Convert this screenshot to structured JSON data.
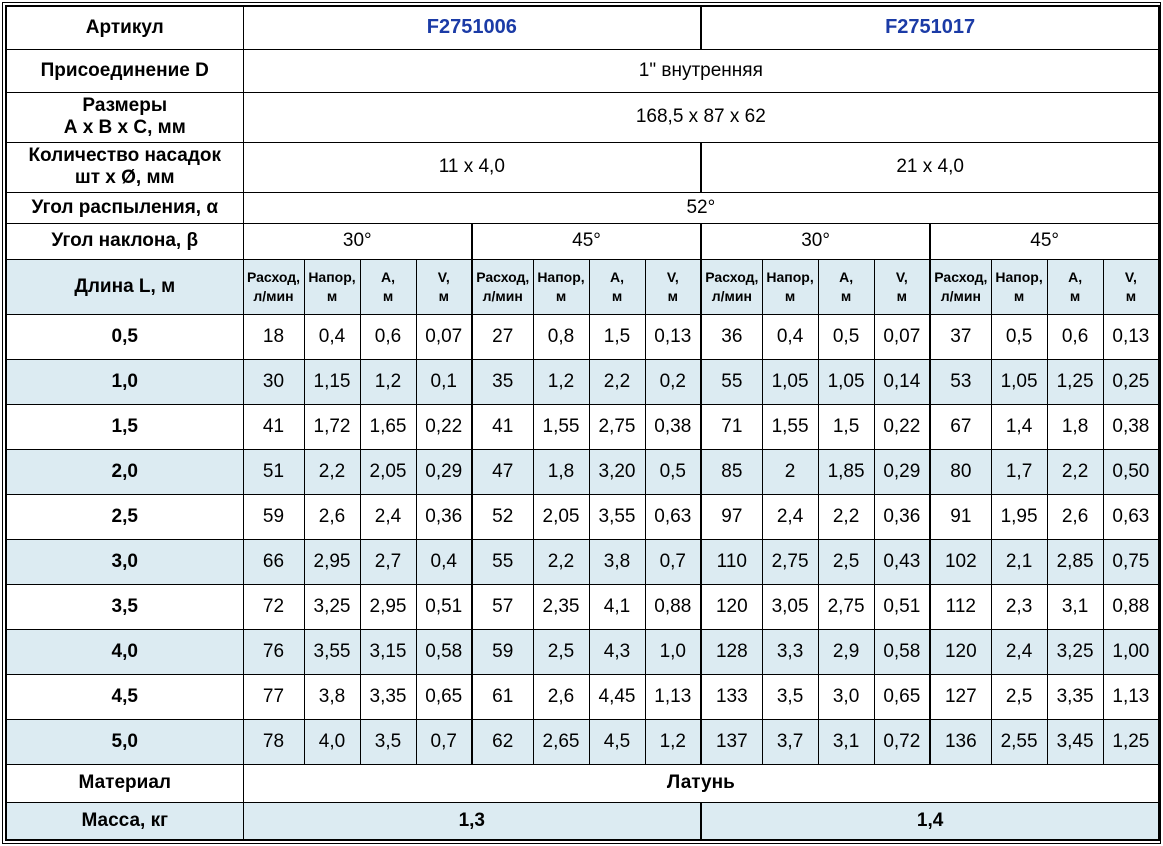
{
  "colors": {
    "article_text": "#1b3ba6",
    "alt_row_bg": "#dcebf2",
    "grid": "#000000"
  },
  "table": {
    "article": {
      "label": "Артикул",
      "values": [
        "F2751006",
        "F2751017"
      ]
    },
    "connection": {
      "label": "Присоединение D",
      "value": "1\" внутренняя"
    },
    "dimensions": {
      "label_line1": "Размеры",
      "label_line2": "А х В х С, мм",
      "value": "168,5 x 87 x 62"
    },
    "nozzles": {
      "label_line1": "Количество насадок",
      "label_line2": "шт х Ø, мм",
      "values": [
        "11 х 4,0",
        "21 х 4,0"
      ]
    },
    "spray_angle": {
      "label": "Угол распыления, α",
      "value": "52°"
    },
    "tilt_angle": {
      "label": "Угол наклона, β",
      "values": [
        "30°",
        "45°",
        "30°",
        "45°"
      ]
    },
    "length": {
      "label": "Длина L, м"
    },
    "measure_headers": [
      {
        "line1": "Расход,",
        "line2": "л/мин"
      },
      {
        "line1": "Напор,",
        "line2": "м"
      },
      {
        "line1": "А,",
        "line2": "м"
      },
      {
        "line1": "V,",
        "line2": "м"
      }
    ],
    "header_groups_repeat": 4,
    "data_rows": [
      {
        "l": "0,5",
        "v": [
          "18",
          "0,4",
          "0,6",
          "0,07",
          "27",
          "0,8",
          "1,5",
          "0,13",
          "36",
          "0,4",
          "0,5",
          "0,07",
          "37",
          "0,5",
          "0,6",
          "0,13"
        ]
      },
      {
        "l": "1,0",
        "v": [
          "30",
          "1,15",
          "1,2",
          "0,1",
          "35",
          "1,2",
          "2,2",
          "0,2",
          "55",
          "1,05",
          "1,05",
          "0,14",
          "53",
          "1,05",
          "1,25",
          "0,25"
        ]
      },
      {
        "l": "1,5",
        "v": [
          "41",
          "1,72",
          "1,65",
          "0,22",
          "41",
          "1,55",
          "2,75",
          "0,38",
          "71",
          "1,55",
          "1,5",
          "0,22",
          "67",
          "1,4",
          "1,8",
          "0,38"
        ]
      },
      {
        "l": "2,0",
        "v": [
          "51",
          "2,2",
          "2,05",
          "0,29",
          "47",
          "1,8",
          "3,20",
          "0,5",
          "85",
          "2",
          "1,85",
          "0,29",
          "80",
          "1,7",
          "2,2",
          "0,50"
        ]
      },
      {
        "l": "2,5",
        "v": [
          "59",
          "2,6",
          "2,4",
          "0,36",
          "52",
          "2,05",
          "3,55",
          "0,63",
          "97",
          "2,4",
          "2,2",
          "0,36",
          "91",
          "1,95",
          "2,6",
          "0,63"
        ]
      },
      {
        "l": "3,0",
        "v": [
          "66",
          "2,95",
          "2,7",
          "0,4",
          "55",
          "2,2",
          "3,8",
          "0,7",
          "110",
          "2,75",
          "2,5",
          "0,43",
          "102",
          "2,1",
          "2,85",
          "0,75"
        ]
      },
      {
        "l": "3,5",
        "v": [
          "72",
          "3,25",
          "2,95",
          "0,51",
          "57",
          "2,35",
          "4,1",
          "0,88",
          "120",
          "3,05",
          "2,75",
          "0,51",
          "112",
          "2,3",
          "3,1",
          "0,88"
        ]
      },
      {
        "l": "4,0",
        "v": [
          "76",
          "3,55",
          "3,15",
          "0,58",
          "59",
          "2,5",
          "4,3",
          "1,0",
          "128",
          "3,3",
          "2,9",
          "0,58",
          "120",
          "2,4",
          "3,25",
          "1,00"
        ]
      },
      {
        "l": "4,5",
        "v": [
          "77",
          "3,8",
          "3,35",
          "0,65",
          "61",
          "2,6",
          "4,45",
          "1,13",
          "133",
          "3,5",
          "3,0",
          "0,65",
          "127",
          "2,5",
          "3,35",
          "1,13"
        ]
      },
      {
        "l": "5,0",
        "v": [
          "78",
          "4,0",
          "3,5",
          "0,7",
          "62",
          "2,65",
          "4,5",
          "1,2",
          "137",
          "3,7",
          "3,1",
          "0,72",
          "136",
          "2,55",
          "3,45",
          "1,25"
        ]
      }
    ],
    "material": {
      "label": "Материал",
      "value": "Латунь"
    },
    "mass": {
      "label": "Масса, кг",
      "values": [
        "1,3",
        "1,4"
      ]
    }
  }
}
